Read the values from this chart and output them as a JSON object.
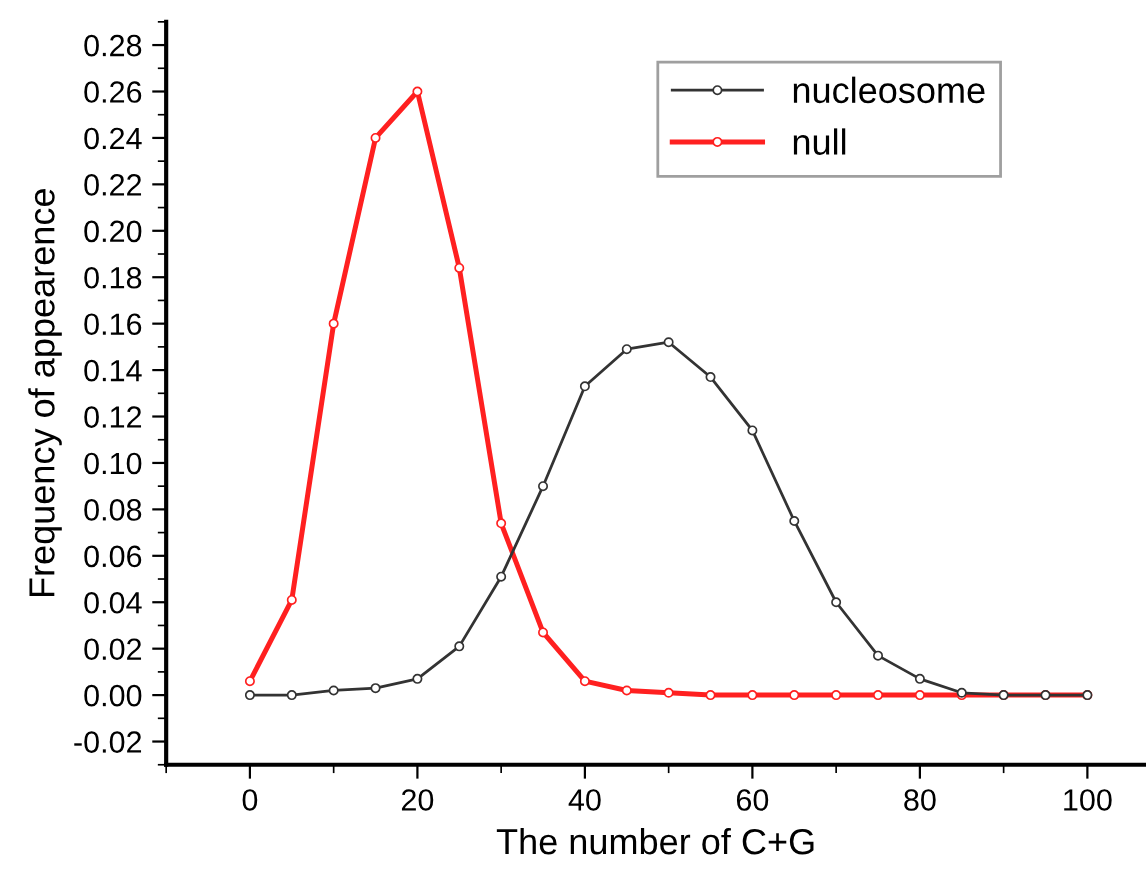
{
  "chart_data": {
    "type": "line",
    "xlabel": "The number of C+G",
    "ylabel": "Frequency of appearence",
    "x": [
      0,
      5,
      10,
      15,
      20,
      25,
      30,
      35,
      40,
      45,
      50,
      55,
      60,
      65,
      70,
      75,
      80,
      85,
      90,
      95,
      100
    ],
    "series": [
      {
        "name": "nucleosome",
        "color": "#333333",
        "values": [
          0.0,
          0.0,
          0.002,
          0.003,
          0.007,
          0.021,
          0.051,
          0.09,
          0.133,
          0.149,
          0.152,
          0.137,
          0.114,
          0.075,
          0.04,
          0.017,
          0.007,
          0.001,
          0.0,
          0.0,
          0.0
        ]
      },
      {
        "name": "null",
        "color": "#ff2020",
        "values": [
          0.006,
          0.041,
          0.16,
          0.24,
          0.26,
          0.184,
          0.074,
          0.027,
          0.006,
          0.002,
          0.001,
          0.0,
          0.0,
          0.0,
          0.0,
          0.0,
          0.0,
          0.0,
          0.0,
          0.0,
          0.0
        ]
      }
    ],
    "xlim": [
      -10,
      107
    ],
    "ylim": [
      -0.03,
      0.29
    ],
    "xticks": [
      0,
      20,
      40,
      60,
      80,
      100
    ],
    "yticks": [
      {
        "value": -0.02,
        "label": "-0.02"
      },
      {
        "value": 0.0,
        "label": "0.00"
      },
      {
        "value": 0.02,
        "label": "0.02"
      },
      {
        "value": 0.04,
        "label": "0.04"
      },
      {
        "value": 0.06,
        "label": "0.06"
      },
      {
        "value": 0.08,
        "label": "0.08"
      },
      {
        "value": 0.1,
        "label": "0.10"
      },
      {
        "value": 0.12,
        "label": "0.12"
      },
      {
        "value": 0.14,
        "label": "0.14"
      },
      {
        "value": 0.16,
        "label": "0.16"
      },
      {
        "value": 0.18,
        "label": "0.18"
      },
      {
        "value": 0.2,
        "label": "0.20"
      },
      {
        "value": 0.22,
        "label": "0.22"
      },
      {
        "value": 0.24,
        "label": "0.24"
      },
      {
        "value": 0.26,
        "label": "0.26"
      },
      {
        "value": 0.28,
        "label": "0.28"
      }
    ],
    "marker": "circle",
    "line_style": "solid",
    "legend": "top right",
    "grid": false
  }
}
